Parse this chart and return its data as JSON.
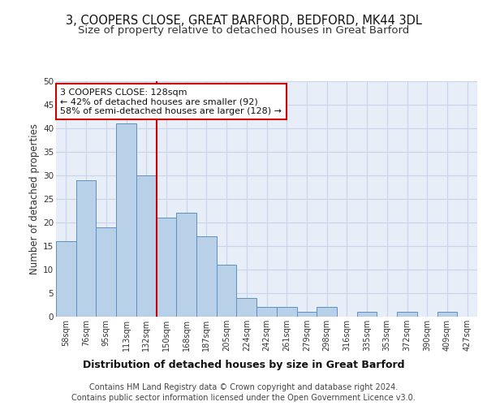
{
  "title": "3, COOPERS CLOSE, GREAT BARFORD, BEDFORD, MK44 3DL",
  "subtitle": "Size of property relative to detached houses in Great Barford",
  "xlabel": "Distribution of detached houses by size in Great Barford",
  "ylabel": "Number of detached properties",
  "bin_labels": [
    "58sqm",
    "76sqm",
    "95sqm",
    "113sqm",
    "132sqm",
    "150sqm",
    "168sqm",
    "187sqm",
    "205sqm",
    "224sqm",
    "242sqm",
    "261sqm",
    "279sqm",
    "298sqm",
    "316sqm",
    "335sqm",
    "353sqm",
    "372sqm",
    "390sqm",
    "409sqm",
    "427sqm"
  ],
  "bar_values": [
    16,
    29,
    19,
    41,
    30,
    21,
    22,
    17,
    11,
    4,
    2,
    2,
    1,
    2,
    0,
    1,
    0,
    1,
    0,
    1,
    0
  ],
  "bar_color": "#b8d0e8",
  "bar_edge_color": "#6090c0",
  "grid_color": "#c8d4e8",
  "background_color": "#e8eef8",
  "annotation_line1": "3 COOPERS CLOSE: 128sqm",
  "annotation_line2": "← 42% of detached houses are smaller (92)",
  "annotation_line3": "58% of semi-detached houses are larger (128) →",
  "annotation_box_color": "#ffffff",
  "annotation_border_color": "#cc0000",
  "redline_x": 4.5,
  "ylim": [
    0,
    50
  ],
  "yticks": [
    0,
    5,
    10,
    15,
    20,
    25,
    30,
    35,
    40,
    45,
    50
  ],
  "footer_line1": "Contains HM Land Registry data © Crown copyright and database right 2024.",
  "footer_line2": "Contains public sector information licensed under the Open Government Licence v3.0.",
  "title_fontsize": 10.5,
  "subtitle_fontsize": 9.5,
  "xlabel_fontsize": 9,
  "ylabel_fontsize": 8.5,
  "tick_fontsize": 7,
  "annotation_fontsize": 8,
  "footer_fontsize": 7
}
